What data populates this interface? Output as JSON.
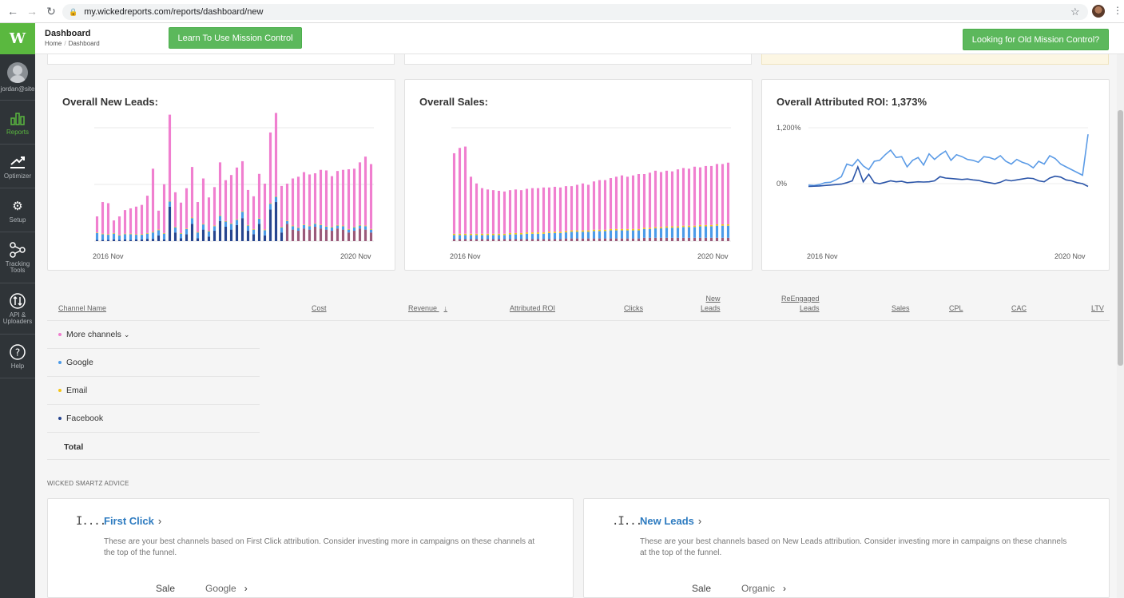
{
  "browser": {
    "url": "my.wickedreports.com/reports/dashboard/new",
    "back_icon": "arrow-left-icon",
    "forward_icon": "arrow-right-icon",
    "reload_icon": "reload-icon"
  },
  "sidebar": {
    "logo": "W",
    "user": "jordan@site",
    "items": [
      {
        "label": "Reports",
        "icon": "reports-icon"
      },
      {
        "label": "Optimizer",
        "icon": "optimizer-icon"
      },
      {
        "label": "Setup",
        "icon": "setup-icon"
      },
      {
        "label": "Tracking Tools",
        "icon": "tracking-icon"
      },
      {
        "label": "API & Uploaders",
        "icon": "api-icon"
      },
      {
        "label": "Help",
        "icon": "help-icon"
      }
    ]
  },
  "header": {
    "title": "Dashboard",
    "crumb_home": "Home",
    "crumb_current": "Dashboard",
    "learn_button": "Learn To Use Mission Control",
    "old_button": "Looking for Old Mission Control?"
  },
  "colors": {
    "pink": "#f07fcf",
    "lightblue": "#4c9be8",
    "yellow": "#f5c518",
    "navy": "#27458f",
    "mauve": "#9b5a7a",
    "roi_light": "#5b9be6",
    "roi_dark": "#2a54a8",
    "green": "#5cb85c"
  },
  "charts": {
    "leads_title": "Overall New Leads:",
    "sales_title": "Overall Sales:",
    "roi_title": "Overall Attributed ROI: 1,373%",
    "x_start": "2016 Nov",
    "x_end": "2020 Nov",
    "roi_tick_top": "1,200%",
    "roi_tick_zero": "0%"
  },
  "chart_data": [
    {
      "type": "bar",
      "stacked": true,
      "title": "Overall New Leads:",
      "x_range": [
        "2016 Nov",
        "2020 Nov"
      ],
      "series": [
        {
          "name": "More channels",
          "values": [
            28,
            55,
            54,
            22,
            32,
            41,
            44,
            48,
            51,
            65,
            110,
            33,
            85,
            150,
            60,
            53,
            70,
            88,
            52,
            79,
            58,
            67,
            92,
            71,
            84,
            90,
            87,
            61,
            57,
            77,
            80,
            123,
            145,
            71,
            64,
            82,
            88,
            91,
            89,
            87,
            95,
            97,
            88,
            94,
            97,
            104,
            101,
            109,
            120,
            113
          ]
        },
        {
          "name": "Google",
          "values": [
            12,
            10,
            9,
            10,
            8,
            9,
            10,
            8,
            8,
            9,
            11,
            9,
            10,
            9,
            9,
            8,
            9,
            10,
            10,
            9,
            9,
            8,
            9,
            9,
            10,
            9,
            11,
            9,
            8,
            9,
            9,
            10,
            9,
            9,
            5,
            6,
            5,
            6,
            6,
            5,
            6,
            5,
            6,
            5,
            6,
            5,
            6,
            5,
            6,
            5
          ]
        },
        {
          "name": "Email",
          "values": [
            1,
            1,
            1,
            1,
            1,
            1,
            1,
            1,
            1,
            1,
            1,
            1,
            1,
            1,
            1,
            1,
            1,
            1,
            1,
            1,
            1,
            1,
            1,
            1,
            1,
            1,
            1,
            1,
            1,
            1,
            1,
            1,
            1,
            1,
            1,
            1,
            1,
            1,
            1,
            1,
            1,
            1,
            1,
            1,
            1,
            1,
            1,
            1,
            1,
            1
          ]
        },
        {
          "name": "Facebook",
          "values": [
            2,
            2,
            2,
            3,
            2,
            3,
            2,
            3,
            3,
            4,
            4,
            10,
            3,
            60,
            15,
            5,
            12,
            30,
            5,
            20,
            8,
            18,
            35,
            25,
            20,
            28,
            40,
            18,
            12,
            30,
            10,
            55,
            68,
            15,
            30,
            20,
            18,
            22,
            20,
            25,
            22,
            20,
            18,
            22,
            20,
            15,
            18,
            22,
            20,
            15
          ]
        }
      ]
    },
    {
      "type": "bar",
      "stacked": true,
      "title": "Overall Sales:",
      "x_range": [
        "2016 Nov",
        "2020 Nov"
      ],
      "series": [
        {
          "name": "More channels",
          "values": [
            120,
            128,
            130,
            85,
            75,
            68,
            66,
            65,
            64,
            63,
            64,
            65,
            64,
            65,
            66,
            66,
            67,
            66,
            67,
            66,
            67,
            66,
            68,
            70,
            68,
            72,
            74,
            74,
            76,
            78,
            80,
            78,
            80,
            82,
            80,
            82,
            84,
            82,
            83,
            82,
            85,
            86,
            85,
            88,
            86,
            88,
            88,
            90,
            90,
            92
          ]
        },
        {
          "name": "Google",
          "values": [
            6,
            6,
            6,
            6,
            6,
            6,
            6,
            6,
            6,
            6,
            7,
            7,
            7,
            8,
            8,
            8,
            8,
            9,
            9,
            9,
            9,
            10,
            10,
            10,
            10,
            11,
            11,
            11,
            12,
            12,
            12,
            12,
            12,
            12,
            13,
            13,
            14,
            14,
            15,
            15,
            15,
            16,
            16,
            16,
            17,
            17,
            17,
            18,
            18,
            18
          ]
        },
        {
          "name": "Email",
          "values": [
            2,
            2,
            2,
            2,
            2,
            2,
            2,
            2,
            2,
            2,
            2,
            2,
            2,
            2,
            2,
            2,
            2,
            2,
            2,
            2,
            2,
            2,
            2,
            2,
            2,
            2,
            2,
            2,
            2,
            2,
            2,
            2,
            2,
            2,
            2,
            2,
            2,
            2,
            2,
            2,
            2,
            2,
            2,
            2,
            2,
            2,
            2,
            2,
            2,
            2
          ]
        },
        {
          "name": "Facebook",
          "values": [
            3,
            3,
            3,
            3,
            3,
            3,
            3,
            3,
            3,
            3,
            3,
            3,
            3,
            3,
            3,
            3,
            3,
            3,
            3,
            3,
            4,
            4,
            4,
            4,
            4,
            4,
            4,
            4,
            4,
            4,
            4,
            4,
            4,
            4,
            5,
            5,
            5,
            5,
            5,
            5,
            5,
            5,
            5,
            5,
            5,
            5,
            5,
            5,
            5,
            5
          ]
        }
      ]
    },
    {
      "type": "line",
      "title": "Overall Attributed ROI: 1,373%",
      "x_range": [
        "2016 Nov",
        "2020 Nov"
      ],
      "y_ticks": [
        "1,200%",
        "0%"
      ],
      "series": [
        {
          "values": [
            -30,
            -40,
            -20,
            20,
            30,
            80,
            150,
            420,
            380,
            520,
            380,
            300,
            480,
            500,
            620,
            720,
            560,
            580,
            360,
            500,
            560,
            400,
            640,
            520,
            620,
            700,
            500,
            620,
            580,
            520,
            500,
            460,
            580,
            560,
            520,
            600,
            480,
            420,
            520,
            460,
            420,
            340,
            480,
            420,
            600,
            540,
            420,
            360,
            300,
            240,
            180,
            1060
          ]
        },
        {
          "values": [
            -60,
            -55,
            -50,
            -40,
            -30,
            -20,
            -10,
            20,
            60,
            360,
            40,
            200,
            20,
            0,
            30,
            60,
            40,
            50,
            20,
            30,
            40,
            35,
            40,
            60,
            150,
            120,
            110,
            100,
            90,
            100,
            80,
            70,
            40,
            20,
            0,
            30,
            80,
            60,
            80,
            100,
            120,
            110,
            60,
            40,
            120,
            160,
            140,
            80,
            60,
            20,
            0,
            -60
          ]
        }
      ]
    }
  ],
  "table": {
    "headers": {
      "channel": "Channel Name",
      "cost": "Cost",
      "revenue": "Revenue",
      "sort_icon": "↓",
      "roi": "Attributed ROI",
      "clicks": "Clicks",
      "new_leads_1": "New",
      "new_leads_2": "Leads",
      "reengaged_1": "ReEngaged",
      "reengaged_2": "Leads",
      "sales": "Sales",
      "cpl": "CPL",
      "cac": "CAC",
      "ltv": "LTV"
    },
    "rows": [
      {
        "label": "More channels",
        "chevron": "⌄"
      },
      {
        "label": "Google"
      },
      {
        "label": "Email"
      },
      {
        "label": "Facebook"
      }
    ],
    "total": "Total"
  },
  "advice": {
    "heading": "WICKED SMARTZ ADVICE",
    "cards": [
      {
        "title": "First Click",
        "bars": "I....",
        "desc": "These are your best channels based on First Click attribution. Consider investing more in campaigns on these channels at the top of the funnel.",
        "sale": "Sale",
        "channel": "Google"
      },
      {
        "title": "New Leads",
        "bars": ".I...",
        "desc": "These are your best channels based on New Leads attribution. Consider investing more in campaigns on these channels at the top of the funnel.",
        "sale": "Sale",
        "channel": "Organic"
      }
    ]
  }
}
